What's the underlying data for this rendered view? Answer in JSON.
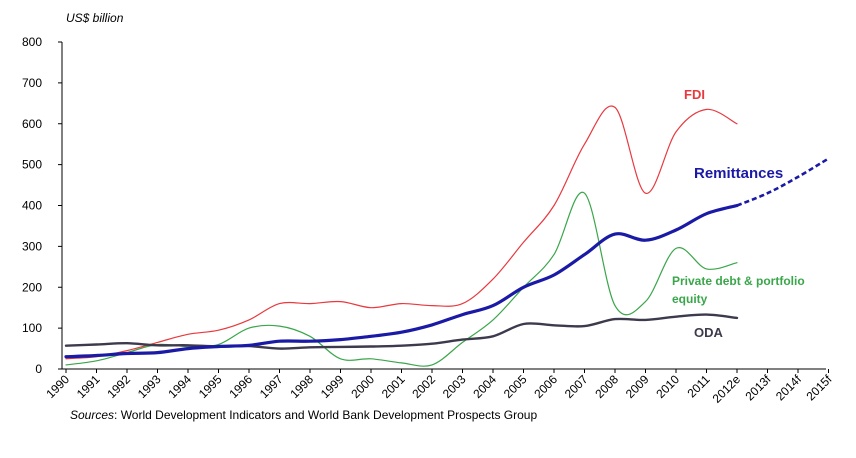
{
  "chart_data": {
    "type": "line",
    "ylabel": "US$ billion",
    "ylim": [
      0,
      800
    ],
    "yticks": [
      0,
      100,
      200,
      300,
      400,
      500,
      600,
      700,
      800
    ],
    "categories": [
      "1990",
      "1991",
      "1992",
      "1993",
      "1994",
      "1995",
      "1996",
      "1997",
      "1998",
      "1999",
      "2000",
      "2001",
      "2002",
      "2003",
      "2004",
      "2005",
      "2006",
      "2007",
      "2008",
      "2009",
      "2010",
      "2011",
      "2012e",
      "2013f",
      "2014f",
      "2015f"
    ],
    "series": [
      {
        "name": "FDI",
        "color": "#e8393f",
        "values": [
          25,
          30,
          45,
          65,
          85,
          95,
          120,
          160,
          160,
          165,
          150,
          160,
          155,
          160,
          220,
          310,
          400,
          550,
          640,
          430,
          580,
          635,
          600,
          null,
          null,
          null
        ]
      },
      {
        "name": "Remittances",
        "color": "#1a1aa6",
        "values": [
          30,
          33,
          38,
          40,
          50,
          55,
          58,
          68,
          68,
          72,
          80,
          90,
          108,
          133,
          155,
          200,
          230,
          280,
          330,
          315,
          340,
          380,
          400,
          null,
          null,
          null
        ],
        "forecast_values": [
          null,
          null,
          null,
          null,
          null,
          null,
          null,
          null,
          null,
          null,
          null,
          null,
          null,
          null,
          null,
          null,
          null,
          null,
          null,
          null,
          null,
          null,
          400,
          430,
          470,
          515
        ]
      },
      {
        "name": "Private debt & portfolio equity",
        "color": "#3aa64a",
        "values": [
          10,
          20,
          40,
          60,
          55,
          60,
          100,
          105,
          80,
          25,
          25,
          15,
          10,
          65,
          120,
          200,
          280,
          430,
          155,
          165,
          295,
          245,
          260,
          null,
          null,
          null
        ]
      },
      {
        "name": "ODA",
        "color": "#3d3a4d",
        "values": [
          57,
          60,
          63,
          58,
          58,
          55,
          56,
          50,
          53,
          54,
          55,
          57,
          62,
          72,
          80,
          110,
          107,
          105,
          122,
          120,
          128,
          133,
          125,
          null,
          null,
          null
        ]
      }
    ],
    "labels": {
      "fdi": "FDI",
      "remittances": "Remittances",
      "private_line1": "Private debt & portfolio",
      "private_line2": "equity",
      "oda": "ODA"
    },
    "grid": false,
    "legend": "inline labels"
  },
  "source": {
    "label": "Sources",
    "text": ": World Development Indicators and World Bank Development Prospects Group"
  }
}
